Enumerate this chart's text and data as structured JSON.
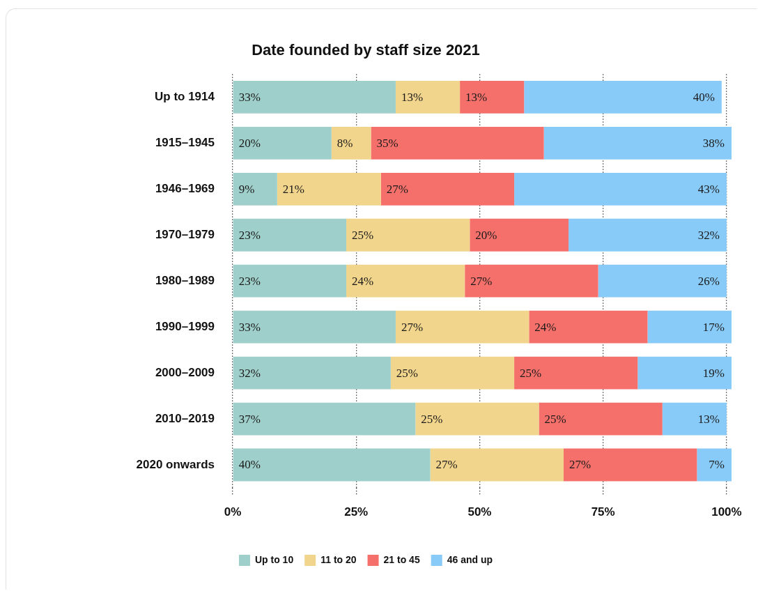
{
  "chart_data": {
    "type": "bar",
    "orientation": "horizontal",
    "stacked": true,
    "title": "Date founded by staff size 2021",
    "categories": [
      "Up to 1914",
      "1915–1945",
      "1946–1969",
      "1970–1979",
      "1980–1989",
      "1990–1999",
      "2000–2009",
      "2010–2019",
      "2020 onwards"
    ],
    "series": [
      {
        "name": "Up to 10",
        "color": "#9fcfca",
        "values": [
          33,
          20,
          9,
          23,
          23,
          33,
          32,
          37,
          40
        ],
        "value_labels": [
          "33%",
          "20%",
          "9%",
          "23%",
          "23%",
          "33%",
          "32%",
          "37%",
          "40%"
        ]
      },
      {
        "name": "11 to 20",
        "color": "#f2d58c",
        "values": [
          13,
          8,
          21,
          25,
          24,
          27,
          25,
          25,
          27
        ],
        "value_labels": [
          "13%",
          "8%",
          "21%",
          "25%",
          "24%",
          "27%",
          "25%",
          "25%",
          "27%"
        ]
      },
      {
        "name": "21 to 45",
        "color": "#f5706b",
        "values": [
          13,
          35,
          27,
          20,
          27,
          24,
          25,
          25,
          27
        ],
        "value_labels": [
          "13%",
          "35%",
          "27%",
          "20%",
          "27%",
          "24%",
          "25%",
          "25%",
          "27%"
        ]
      },
      {
        "name": "46 and up",
        "color": "#89cbf8",
        "values": [
          40,
          38,
          43,
          32,
          26,
          17,
          19,
          13,
          7
        ],
        "value_labels": [
          "40%",
          "38%",
          "43%",
          "32%",
          "26%",
          "17%",
          "19%",
          "13%",
          "7%"
        ]
      }
    ],
    "xlim": [
      0,
      101
    ],
    "xticks": [
      {
        "value": 0,
        "label": "0%"
      },
      {
        "value": 25,
        "label": "25%"
      },
      {
        "value": 50,
        "label": "50%"
      },
      {
        "value": 75,
        "label": "75%"
      },
      {
        "value": 100,
        "label": "100%"
      }
    ],
    "grid": "x",
    "legend": "bottom"
  }
}
